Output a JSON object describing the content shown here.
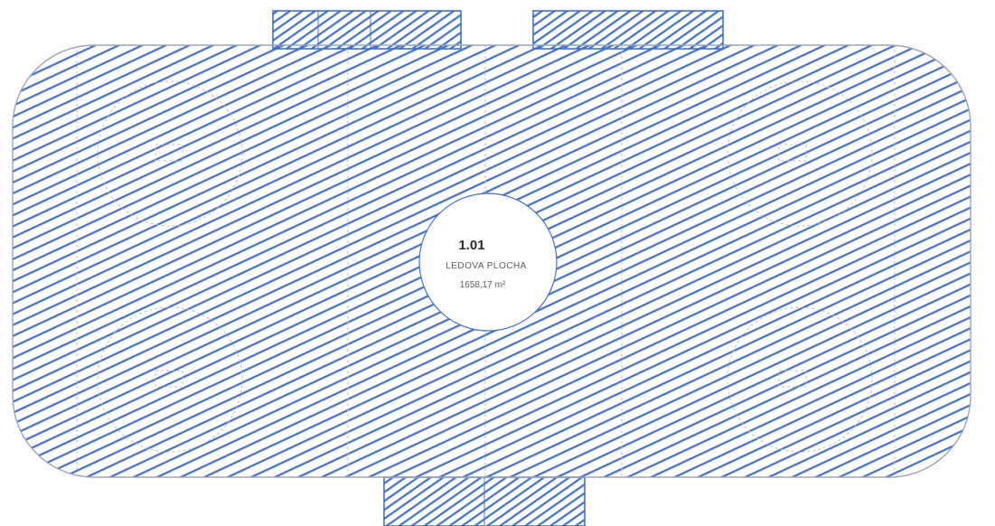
{
  "room": {
    "number": "1.01",
    "name": "LEDOVA  PLOCHA",
    "area": "1658,17 m²"
  },
  "colors": {
    "hatch": "#3f6fd1",
    "rink_outline": "#9aa5b8",
    "markings": "#b9bec7",
    "background": "#ffffff",
    "label_disc": "#ffffff"
  }
}
